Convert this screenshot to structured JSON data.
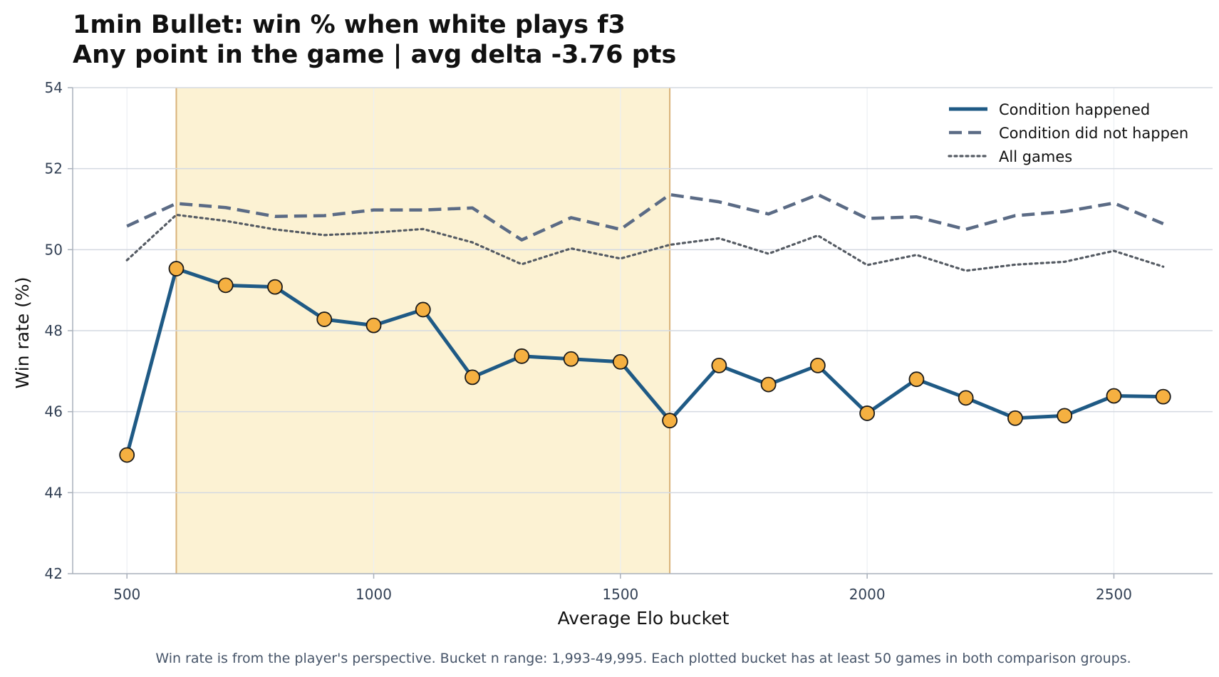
{
  "chart_data": {
    "type": "line",
    "title": "1min Bullet: win % when white plays f3",
    "subtitle": "Any point in the game | avg delta -3.76 pts",
    "xlabel": "Average Elo bucket",
    "ylabel": "Win rate (%)",
    "xlim": [
      390,
      2700
    ],
    "ylim": [
      42,
      54
    ],
    "xticks": [
      500,
      1000,
      1500,
      2000,
      2500
    ],
    "yticks": [
      42,
      44,
      46,
      48,
      50,
      52,
      54
    ],
    "grid": true,
    "legend_position": "top-right",
    "highlight_range": [
      600,
      1600
    ],
    "x": [
      500,
      600,
      700,
      800,
      900,
      1000,
      1100,
      1200,
      1300,
      1400,
      1500,
      1600,
      1700,
      1800,
      1900,
      2000,
      2100,
      2200,
      2300,
      2400,
      2500,
      2600
    ],
    "series": [
      {
        "name": "Condition happened",
        "style": "solid",
        "color": "#1f5a85",
        "marker_color": "#f5b041",
        "values": [
          44.93,
          49.53,
          49.12,
          49.08,
          48.28,
          48.13,
          48.52,
          46.85,
          47.37,
          47.3,
          47.23,
          45.78,
          47.14,
          46.67,
          47.14,
          45.96,
          46.8,
          46.34,
          45.84,
          45.9,
          46.39,
          46.37
        ]
      },
      {
        "name": "Condition did not happen",
        "style": "dashed",
        "color": "#5b6b85",
        "values": [
          50.58,
          51.14,
          51.04,
          50.82,
          50.84,
          50.98,
          50.98,
          51.03,
          50.24,
          50.79,
          50.5,
          51.36,
          51.18,
          50.88,
          51.36,
          50.77,
          50.81,
          50.5,
          50.84,
          50.94,
          51.15,
          50.64
        ]
      },
      {
        "name": "All games",
        "style": "dotted",
        "color": "#555b63",
        "values": [
          49.74,
          50.86,
          50.71,
          50.5,
          50.36,
          50.42,
          50.51,
          50.18,
          49.64,
          50.03,
          49.78,
          50.12,
          50.28,
          49.9,
          50.35,
          49.62,
          49.87,
          49.48,
          49.63,
          49.7,
          49.97,
          49.58
        ]
      }
    ],
    "footnote": "Win rate is from the player's perspective. Bucket n range: 1,993-49,995. Each plotted bucket has at least 50 games in both comparison groups."
  },
  "colors": {
    "highlight_fill": "#fcf2d3",
    "highlight_edge": "#d8b27a",
    "grid_major": "#d4d9e1",
    "grid_minor": "#eceff3",
    "axis": "#a9b0bb"
  }
}
